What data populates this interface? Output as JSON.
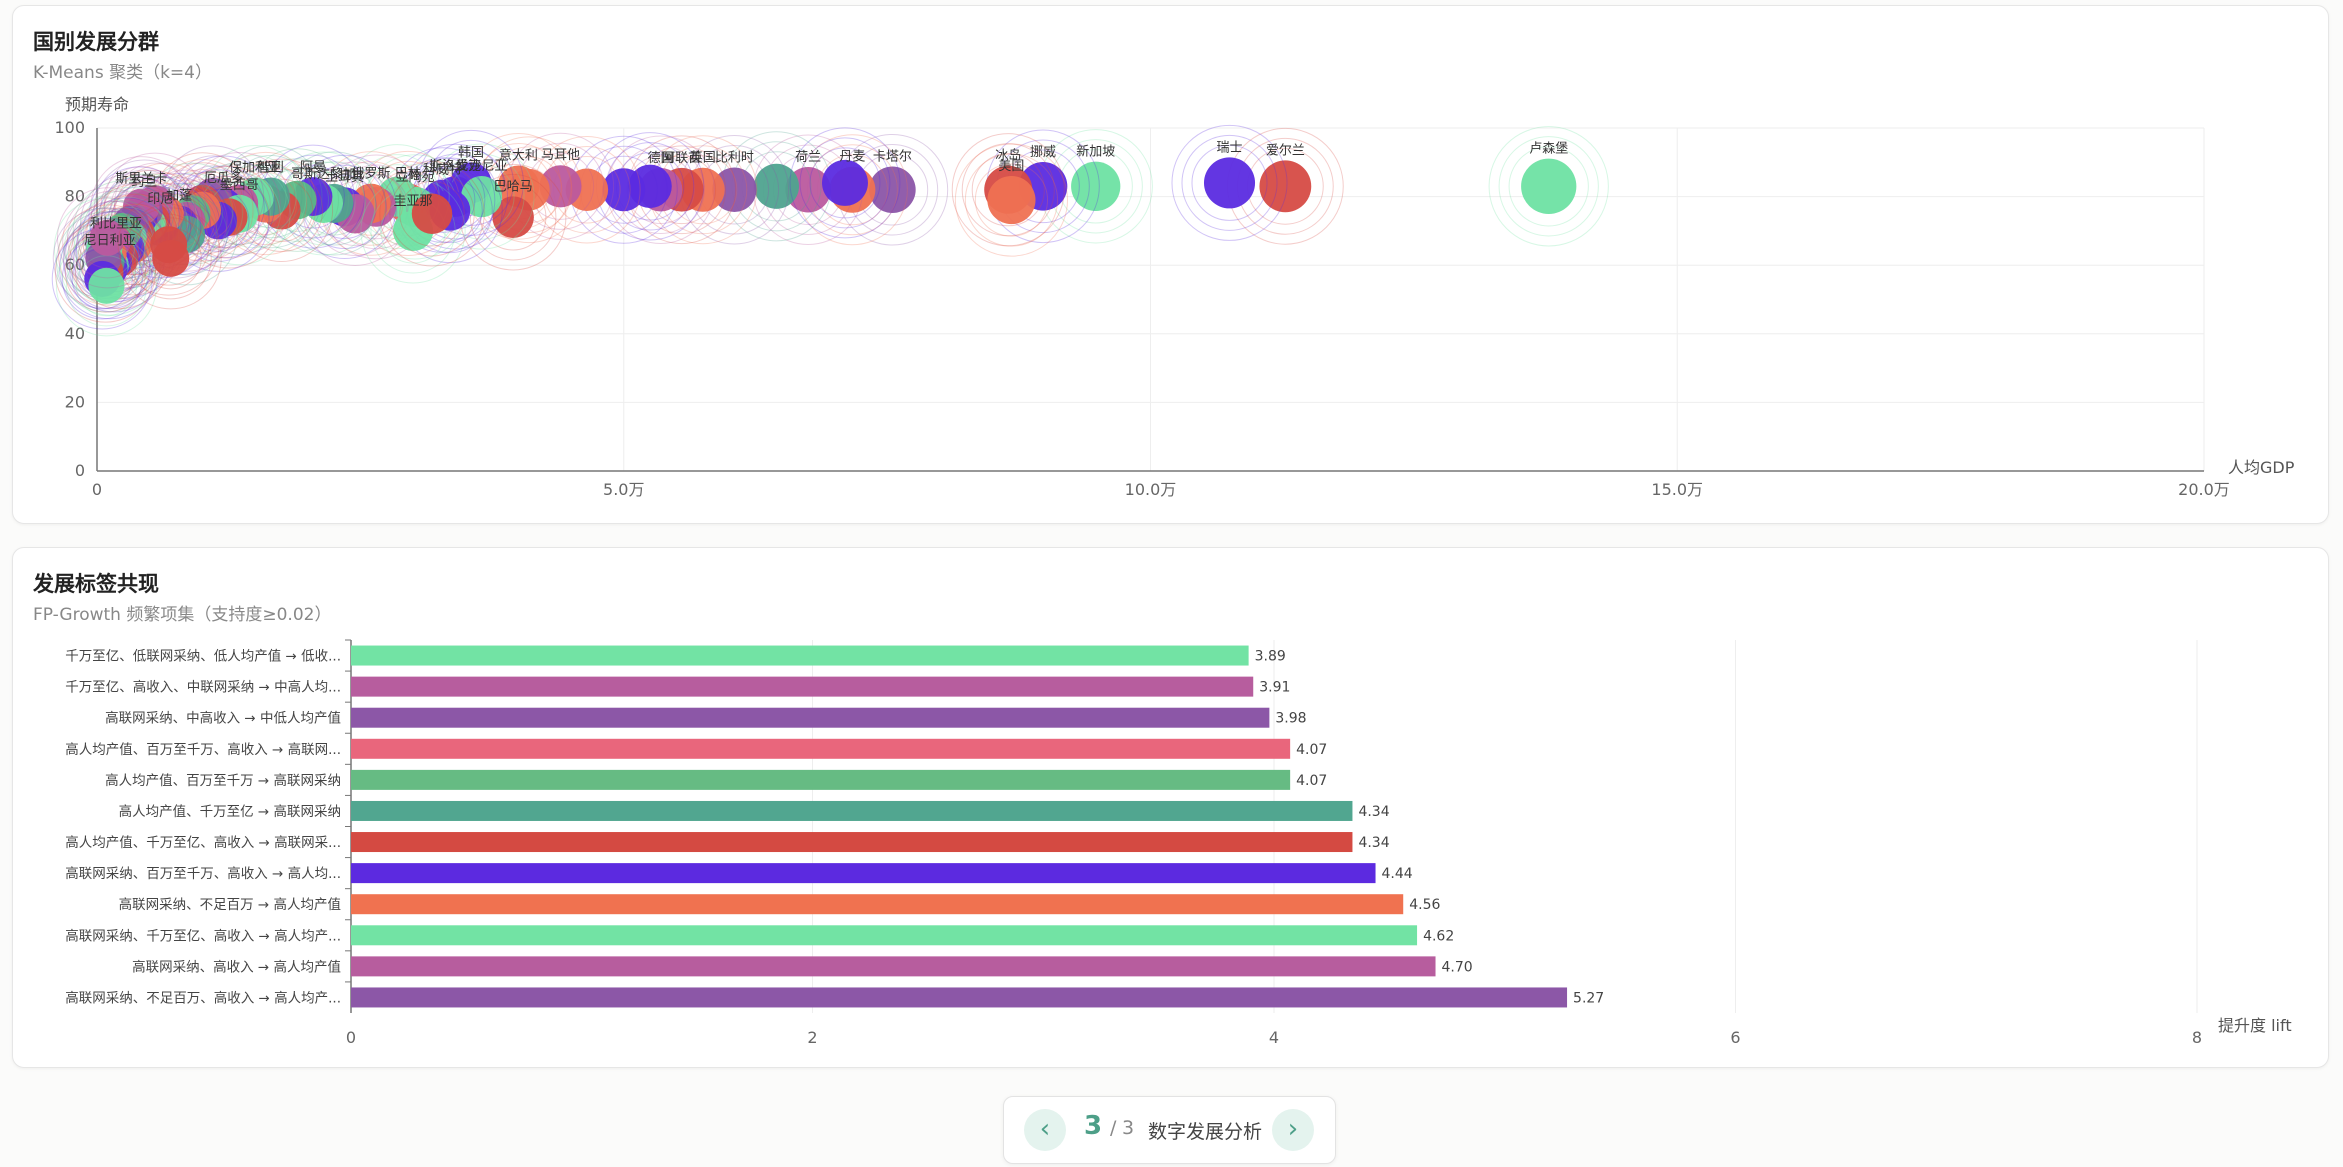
{
  "pager": {
    "current": "3",
    "sep": "/",
    "total": "3",
    "title": "数字发展分析",
    "prev_icon": "‹",
    "next_icon": "›"
  },
  "colors": {
    "accent": "#4d9f88",
    "palette": [
      "#6ee2a3",
      "#5b2be0",
      "#d64b45",
      "#ef7152",
      "#ba5a9e",
      "#8b55a8",
      "#e8657a",
      "#5cb884",
      "#4fa38f"
    ]
  },
  "chart_data": [
    {
      "type": "scatter",
      "title": "国别发展分群",
      "subtitle": "K-Means 聚类（k=4）",
      "xlabel": "人均GDP",
      "ylabel": "预期寿命",
      "xlim": [
        0,
        200000
      ],
      "ylim": [
        0,
        100
      ],
      "xticks": [
        0,
        50000,
        100000,
        150000,
        200000
      ],
      "xtick_labels": [
        "0",
        "5.0万",
        "10.0万",
        "15.0万",
        "20.0万"
      ],
      "yticks": [
        0,
        20,
        40,
        60,
        80,
        100
      ],
      "ytick_labels": [
        "0",
        "20",
        "40",
        "60",
        "80",
        "100"
      ],
      "grid": true,
      "points": [
        {
          "label": "卢森堡",
          "x": 137800,
          "y": 83,
          "c": 0
        },
        {
          "label": "爱尔兰",
          "x": 112800,
          "y": 83,
          "c": 2
        },
        {
          "label": "瑞士",
          "x": 107500,
          "y": 84,
          "c": 1
        },
        {
          "label": "新加坡",
          "x": 94800,
          "y": 83,
          "c": 0
        },
        {
          "label": "挪威",
          "x": 89800,
          "y": 83,
          "c": 1
        },
        {
          "label": "冰岛",
          "x": 86500,
          "y": 82,
          "c": 2
        },
        {
          "label": "美国",
          "x": 86800,
          "y": 79,
          "c": 3
        },
        {
          "label": "卡塔尔",
          "x": 75500,
          "y": 82,
          "c": 5
        },
        {
          "label": "丹麦",
          "x": 71700,
          "y": 82,
          "c": 3
        },
        {
          "label": "荷兰",
          "x": 67500,
          "y": 82,
          "c": 4
        },
        {
          "label": "",
          "x": 64500,
          "y": 83,
          "c": 8
        },
        {
          "label": "",
          "x": 71000,
          "y": 84,
          "c": 1
        },
        {
          "label": "比利时",
          "x": 60500,
          "y": 82,
          "c": 5
        },
        {
          "label": "英国",
          "x": 57500,
          "y": 82,
          "c": 3
        },
        {
          "label": "阿联酋",
          "x": 55500,
          "y": 82,
          "c": 2
        },
        {
          "label": "德国",
          "x": 53500,
          "y": 82,
          "c": 4
        },
        {
          "label": "",
          "x": 52500,
          "y": 83,
          "c": 1
        },
        {
          "label": "",
          "x": 50000,
          "y": 82,
          "c": 1
        },
        {
          "label": "",
          "x": 46500,
          "y": 82,
          "c": 3
        },
        {
          "label": "马耳他",
          "x": 44000,
          "y": 83,
          "c": 4
        },
        {
          "label": "",
          "x": 41000,
          "y": 82,
          "c": 3
        },
        {
          "label": "意大利",
          "x": 40000,
          "y": 83,
          "c": 3
        },
        {
          "label": "巴哈马",
          "x": 39500,
          "y": 74,
          "c": 2
        },
        {
          "label": "韩国",
          "x": 35500,
          "y": 84,
          "c": 1
        },
        {
          "label": "斯洛伐克",
          "x": 34000,
          "y": 80,
          "c": 1
        },
        {
          "label": "爱沙尼亚",
          "x": 36500,
          "y": 80,
          "c": 0
        },
        {
          "label": "科威特",
          "x": 32800,
          "y": 79,
          "c": 1
        },
        {
          "label": "巴林",
          "x": 29500,
          "y": 78,
          "c": 3
        },
        {
          "label": "立陶宛",
          "x": 30200,
          "y": 77,
          "c": 0
        },
        {
          "label": "",
          "x": 33500,
          "y": 76,
          "c": 1
        },
        {
          "label": "",
          "x": 28500,
          "y": 80,
          "c": 0
        },
        {
          "label": "",
          "x": 26500,
          "y": 77,
          "c": 4
        },
        {
          "label": "俄罗斯",
          "x": 26000,
          "y": 78,
          "c": 3
        },
        {
          "label": "土耳其",
          "x": 23500,
          "y": 77,
          "c": 1
        },
        {
          "label": "",
          "x": 24500,
          "y": 75,
          "c": 4
        },
        {
          "label": "",
          "x": 22500,
          "y": 78,
          "c": 8
        },
        {
          "label": "哥斯达黎加",
          "x": 21500,
          "y": 78,
          "c": 0
        },
        {
          "label": "圭亚那",
          "x": 30000,
          "y": 70,
          "c": 0
        },
        {
          "label": "",
          "x": 31800,
          "y": 75,
          "c": 2
        },
        {
          "label": "阿曼",
          "x": 20500,
          "y": 80,
          "c": 1
        },
        {
          "label": "",
          "x": 19000,
          "y": 79,
          "c": 7
        },
        {
          "label": "",
          "x": 17500,
          "y": 76,
          "c": 2
        },
        {
          "label": "",
          "x": 16000,
          "y": 78,
          "c": 3
        },
        {
          "label": "智利",
          "x": 16500,
          "y": 80,
          "c": 8
        },
        {
          "label": "保加利亚",
          "x": 15000,
          "y": 80,
          "c": 0
        },
        {
          "label": "",
          "x": 13500,
          "y": 78,
          "c": 4
        },
        {
          "label": "厄瓜多",
          "x": 12000,
          "y": 77,
          "c": 1
        },
        {
          "label": "",
          "x": 11000,
          "y": 80,
          "c": 5
        },
        {
          "label": "",
          "x": 10000,
          "y": 78,
          "c": 2
        },
        {
          "label": "墨西哥",
          "x": 13500,
          "y": 75,
          "c": 0
        },
        {
          "label": "",
          "x": 12500,
          "y": 74,
          "c": 2
        },
        {
          "label": "",
          "x": 11500,
          "y": 73,
          "c": 1
        },
        {
          "label": "",
          "x": 10000,
          "y": 76,
          "c": 3
        },
        {
          "label": "",
          "x": 9000,
          "y": 75,
          "c": 7
        },
        {
          "label": "",
          "x": 8500,
          "y": 73,
          "c": 4
        },
        {
          "label": "加蓬",
          "x": 7800,
          "y": 72,
          "c": 1
        },
        {
          "label": "",
          "x": 7500,
          "y": 71,
          "c": 5
        },
        {
          "label": "",
          "x": 8500,
          "y": 69,
          "c": 8
        },
        {
          "label": "印尼",
          "x": 6000,
          "y": 71,
          "c": 1
        },
        {
          "label": "",
          "x": 6500,
          "y": 75,
          "c": 3
        },
        {
          "label": "",
          "x": 5500,
          "y": 78,
          "c": 4
        },
        {
          "label": "",
          "x": 5200,
          "y": 73,
          "c": 2
        },
        {
          "label": "",
          "x": 4800,
          "y": 72,
          "c": 0
        },
        {
          "label": "约旦",
          "x": 4500,
          "y": 76,
          "c": 5
        },
        {
          "label": "",
          "x": 4000,
          "y": 74,
          "c": 1
        },
        {
          "label": "斯里兰卡",
          "x": 4200,
          "y": 77,
          "c": 4
        },
        {
          "label": "",
          "x": 3800,
          "y": 69,
          "c": 2
        },
        {
          "label": "",
          "x": 3500,
          "y": 66,
          "c": 3
        },
        {
          "label": "",
          "x": 3200,
          "y": 72,
          "c": 5
        },
        {
          "label": "",
          "x": 3000,
          "y": 68,
          "c": 0
        },
        {
          "label": "",
          "x": 2800,
          "y": 65,
          "c": 1
        },
        {
          "label": "",
          "x": 2500,
          "y": 70,
          "c": 7
        },
        {
          "label": "利比里亚",
          "x": 1800,
          "y": 64,
          "c": 5
        },
        {
          "label": "",
          "x": 2200,
          "y": 62,
          "c": 2
        },
        {
          "label": "",
          "x": 1600,
          "y": 61,
          "c": 1
        },
        {
          "label": "",
          "x": 1500,
          "y": 67,
          "c": 4
        },
        {
          "label": "",
          "x": 1300,
          "y": 60,
          "c": 0
        },
        {
          "label": "",
          "x": 1100,
          "y": 63,
          "c": 3
        },
        {
          "label": "尼日利亚",
          "x": 1200,
          "y": 59,
          "c": 1
        },
        {
          "label": "",
          "x": 900,
          "y": 61,
          "c": 8
        },
        {
          "label": "",
          "x": 800,
          "y": 58,
          "c": 2
        },
        {
          "label": "",
          "x": 700,
          "y": 65,
          "c": 0
        },
        {
          "label": "",
          "x": 600,
          "y": 62,
          "c": 5
        },
        {
          "label": "",
          "x": 500,
          "y": 56,
          "c": 1
        },
        {
          "label": "",
          "x": 900,
          "y": 54,
          "c": 0
        },
        {
          "label": "",
          "x": 1000,
          "y": 68,
          "c": 4
        },
        {
          "label": "",
          "x": 6800,
          "y": 66,
          "c": 2
        },
        {
          "label": "",
          "x": 7000,
          "y": 62,
          "c": 2
        }
      ]
    },
    {
      "type": "bar",
      "orientation": "horizontal",
      "title": "发展标签共现",
      "subtitle": "FP-Growth 频繁项集（支持度≥0.02）",
      "xlabel": "提升度 lift",
      "xlim": [
        0,
        8
      ],
      "xticks": [
        0,
        2,
        4,
        6,
        8
      ],
      "xtick_labels": [
        "0",
        "2",
        "4",
        "6",
        "8"
      ],
      "grid": true,
      "categories": [
        "千万至亿、低联网采纳、低人均产值 → 低收...",
        "千万至亿、高收入、中联网采纳 → 中高人均...",
        "高联网采纳、中高收入 → 中低人均产值",
        "高人均产值、百万至千万、高收入 → 高联网...",
        "高人均产值、百万至千万 → 高联网采纳",
        "高人均产值、千万至亿 → 高联网采纳",
        "高人均产值、千万至亿、高收入 → 高联网采...",
        "高联网采纳、百万至千万、高收入 → 高人均...",
        "高联网采纳、不足百万 → 高人均产值",
        "高联网采纳、千万至亿、高收入 → 高人均产...",
        "高联网采纳、高收入 → 高人均产值",
        "高联网采纳、不足百万、高收入 → 高人均产..."
      ],
      "values": [
        3.89,
        3.91,
        3.98,
        4.07,
        4.07,
        4.34,
        4.34,
        4.44,
        4.56,
        4.62,
        4.7,
        5.27
      ],
      "value_labels": [
        "3.89",
        "3.91",
        "3.98",
        "4.07",
        "4.07",
        "4.34",
        "4.34",
        "4.44",
        "4.56",
        "4.62",
        "4.70",
        "5.27"
      ],
      "bar_colors": [
        "#72e3a4",
        "#b75d9e",
        "#8c57a7",
        "#e9667c",
        "#66bb83",
        "#51a690",
        "#d44a42",
        "#5c2ae0",
        "#f07250",
        "#72e3a4",
        "#b75d9e",
        "#8c57a7"
      ]
    }
  ]
}
